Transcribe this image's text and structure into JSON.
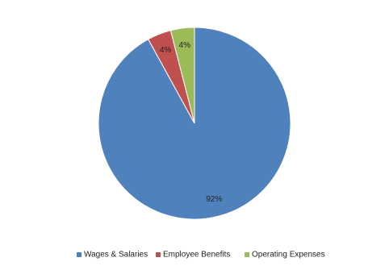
{
  "chart_data": {
    "type": "pie",
    "categories": [
      "Wages & Salaries",
      "Employee Benefits",
      "Operating Expenses"
    ],
    "values": [
      92,
      4,
      4
    ],
    "value_labels": [
      "92%",
      "4%",
      "4%"
    ],
    "colors": [
      "#4f81bd",
      "#c0504d",
      "#9bbb59"
    ],
    "legend": "bottom"
  }
}
